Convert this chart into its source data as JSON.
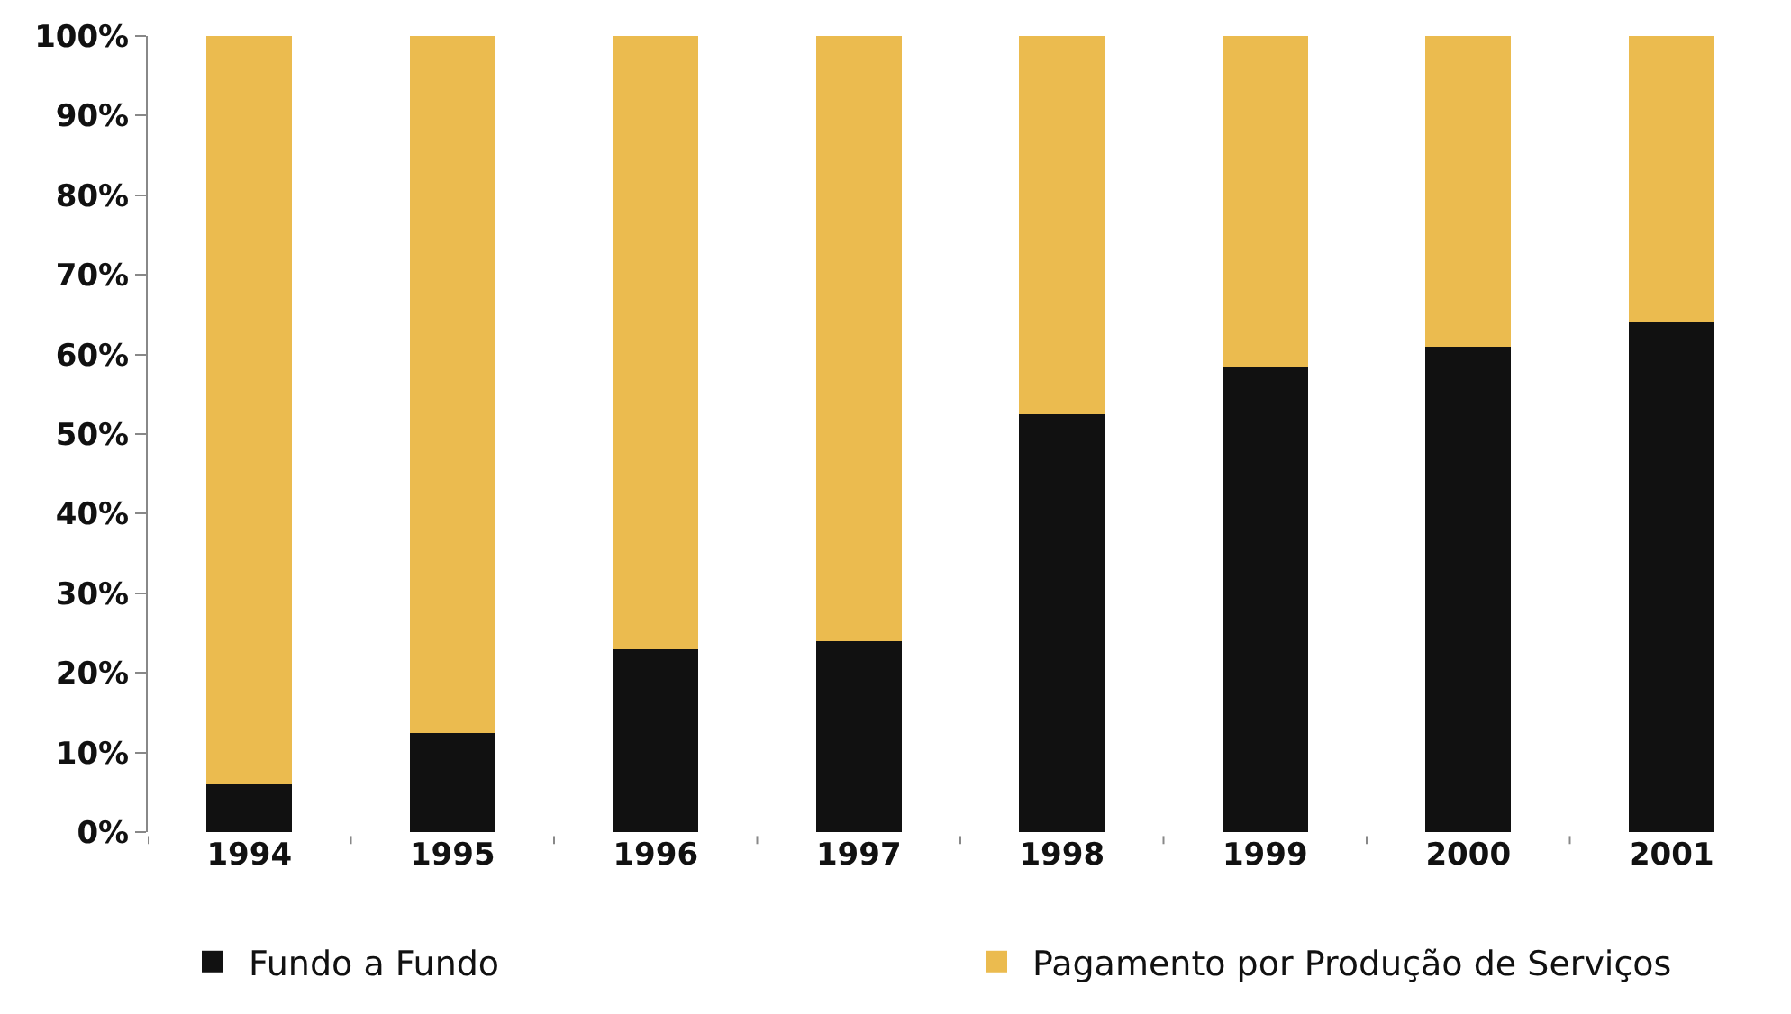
{
  "chart_data": {
    "type": "bar",
    "stacked": true,
    "categories": [
      "1994",
      "1995",
      "1996",
      "1997",
      "1998",
      "1999",
      "2000",
      "2001"
    ],
    "series": [
      {
        "name": "Fundo a Fundo",
        "color": "#111111",
        "values": [
          6,
          12.5,
          23,
          24,
          52.5,
          58.5,
          61,
          64
        ]
      },
      {
        "name": "Pagamento por Produção de Serviços",
        "color": "#ebbb4f",
        "values": [
          94,
          87.5,
          77,
          76,
          47.5,
          41.5,
          39,
          36
        ]
      }
    ],
    "ylim": [
      0,
      100
    ],
    "yticks": [
      {
        "value": 0,
        "label": "0%"
      },
      {
        "value": 10,
        "label": "10%"
      },
      {
        "value": 20,
        "label": "20%"
      },
      {
        "value": 30,
        "label": "30%"
      },
      {
        "value": 40,
        "label": "40%"
      },
      {
        "value": 50,
        "label": "50%"
      },
      {
        "value": 60,
        "label": "60%"
      },
      {
        "value": 70,
        "label": "70%"
      },
      {
        "value": 80,
        "label": "80%"
      },
      {
        "value": 90,
        "label": "90%"
      },
      {
        "value": 100,
        "label": "100%"
      }
    ],
    "grid": false,
    "legend": "bottom"
  }
}
